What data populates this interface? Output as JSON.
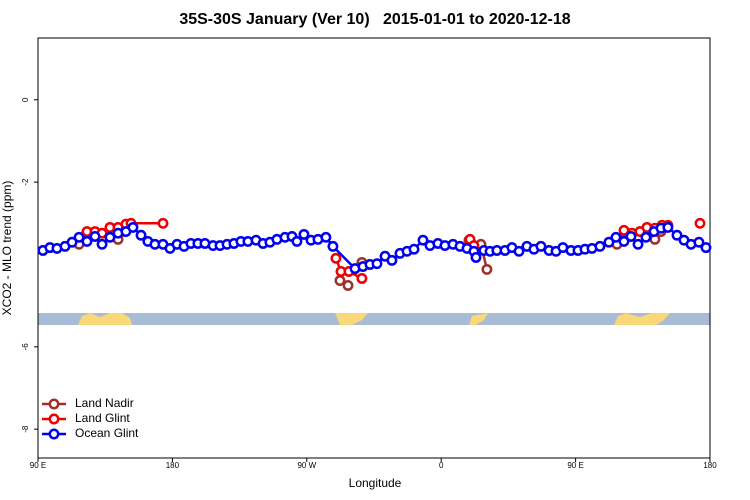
{
  "chart_data": {
    "type": "line",
    "title": "35S-30S January (Ver 10)   2015-01-01 to 2020-12-18",
    "xlabel": "Longitude",
    "ylabel": "XCO2 - MLO trend (ppm)",
    "xlim": [
      90,
      540
    ],
    "xticks": [
      {
        "value": 90,
        "label": "90 E"
      },
      180,
      {
        "value": 270,
        "label": "90 W"
      },
      {
        "value": 360,
        "label": "0"
      },
      {
        "value": 450,
        "label": "90 E"
      },
      {
        "value": 540,
        "label": "180"
      }
    ],
    "ylim": [
      -8.7,
      1.5
    ],
    "yticks": [
      0,
      -2,
      -6,
      -8
    ],
    "legend": "bottom-left",
    "series": [
      {
        "name": "Land Nadir",
        "color": "#a0302a",
        "x": [
          117.5,
          null,
          143.6,
          148.3,
          null,
          292.2,
          297.6,
          null,
          306.9,
          null,
          378.6,
          386.6,
          390.6,
          null,
          477.7,
          483.0,
          null,
          503.1,
          507.2
        ],
        "values": [
          -3.51,
          null,
          -3.39,
          -3.2,
          null,
          -4.39,
          -4.51,
          null,
          -3.95,
          null,
          -3.41,
          -3.51,
          -4.12,
          null,
          -3.51,
          -3.2,
          null,
          -3.39,
          -3.2
        ]
      },
      {
        "name": "Land Glint",
        "color": "#ee0000",
        "x": [
          122.8,
          128.2,
          132.9,
          138.2,
          143.6,
          148.9,
          152.3,
          173.7,
          null,
          289.5,
          292.9,
          298.2,
          306.9,
          null,
          379.3,
          381.9,
          null,
          482.4,
          487.7,
          493.1,
          497.8,
          503.1,
          507.8,
          511.8,
          null,
          533.3
        ],
        "values": [
          -3.2,
          -3.2,
          -3.24,
          -3.1,
          -3.1,
          -3.02,
          -3.0,
          -3.0,
          null,
          -3.85,
          -4.17,
          -4.17,
          -4.34,
          null,
          -3.39,
          -3.54,
          null,
          -3.17,
          -3.24,
          -3.2,
          -3.1,
          -3.12,
          -3.05,
          -3.05,
          null,
          -3.0
        ]
      },
      {
        "name": "Ocean Glint",
        "color": "#0000ee",
        "x": [
          93.3,
          98.0,
          102.7,
          108.1,
          112.8,
          117.5,
          122.8,
          128.2,
          132.9,
          138.2,
          143.6,
          148.9,
          153.6,
          159.0,
          163.6,
          168.3,
          173.7,
          178.4,
          183.1,
          187.8,
          192.4,
          197.1,
          201.8,
          207.2,
          211.9,
          216.6,
          221.2,
          225.9,
          230.6,
          236.0,
          240.7,
          245.3,
          250.0,
          255.4,
          260.1,
          263.4,
          268.1,
          272.8,
          277.5,
          282.8,
          287.5,
          302.3,
          307.6,
          312.3,
          317.0,
          322.4,
          327.0,
          332.4,
          337.1,
          341.8,
          347.8,
          352.5,
          357.8,
          362.5,
          367.9,
          372.6,
          377.3,
          381.9,
          383.3,
          388.6,
          392.7,
          397.3,
          402.7,
          407.4,
          412.1,
          417.4,
          422.1,
          426.8,
          432.2,
          436.9,
          441.5,
          446.9,
          451.6,
          456.3,
          461.0,
          466.3,
          472.3,
          477.0,
          482.4,
          487.1,
          491.8,
          497.1,
          502.5,
          507.2,
          511.8,
          517.9,
          522.6,
          527.3,
          532.6,
          537.3
        ],
        "values": [
          -3.66,
          -3.59,
          -3.61,
          -3.56,
          -3.46,
          -3.34,
          -3.44,
          -3.32,
          -3.51,
          -3.34,
          -3.24,
          -3.2,
          -3.1,
          -3.29,
          -3.44,
          -3.51,
          -3.51,
          -3.61,
          -3.51,
          -3.56,
          -3.49,
          -3.49,
          -3.49,
          -3.54,
          -3.54,
          -3.51,
          -3.49,
          -3.44,
          -3.44,
          -3.41,
          -3.49,
          -3.46,
          -3.39,
          -3.34,
          -3.32,
          -3.44,
          -3.27,
          -3.41,
          -3.39,
          -3.34,
          -3.56,
          -4.1,
          -4.05,
          -4.0,
          -3.98,
          -3.8,
          -3.9,
          -3.73,
          -3.68,
          -3.63,
          -3.41,
          -3.54,
          -3.49,
          -3.54,
          -3.51,
          -3.56,
          -3.61,
          -3.68,
          -3.83,
          -3.66,
          -3.68,
          -3.66,
          -3.66,
          -3.59,
          -3.68,
          -3.56,
          -3.63,
          -3.56,
          -3.66,
          -3.68,
          -3.59,
          -3.66,
          -3.66,
          -3.63,
          -3.61,
          -3.56,
          -3.46,
          -3.34,
          -3.44,
          -3.32,
          -3.51,
          -3.34,
          -3.2,
          -3.12,
          -3.1,
          -3.29,
          -3.41,
          -3.51,
          -3.46,
          -3.59
        ]
      }
    ]
  }
}
